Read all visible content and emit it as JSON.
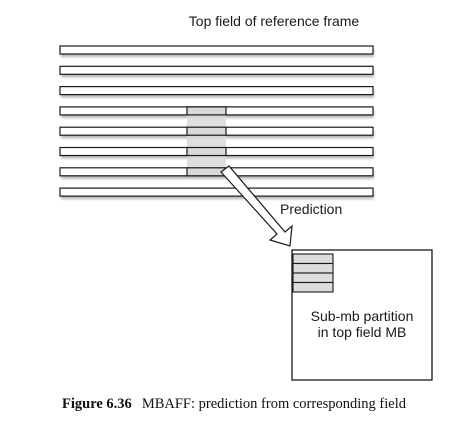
{
  "diagram": {
    "reference_label": "Top field of reference frame",
    "arrow_label": "Prediction",
    "target_label_line1": "Sub-mb partition",
    "target_label_line2": "in top field MB",
    "reference_line_count": 8,
    "highlighted_lines": [
      3,
      4,
      5,
      6
    ],
    "target_stripe_count": 4,
    "colors": {
      "line_fill": "#ffffff",
      "line_stroke": "#1a1a1a",
      "line_shadow": "#b5b5b5",
      "highlight_fill": "#d9d9d9",
      "target_stripe_fill": "#dcdcdc",
      "text": "#1a1a1a"
    }
  },
  "caption": {
    "figure_number": "Figure 6.36",
    "text": "MBAFF: prediction from corresponding field"
  }
}
